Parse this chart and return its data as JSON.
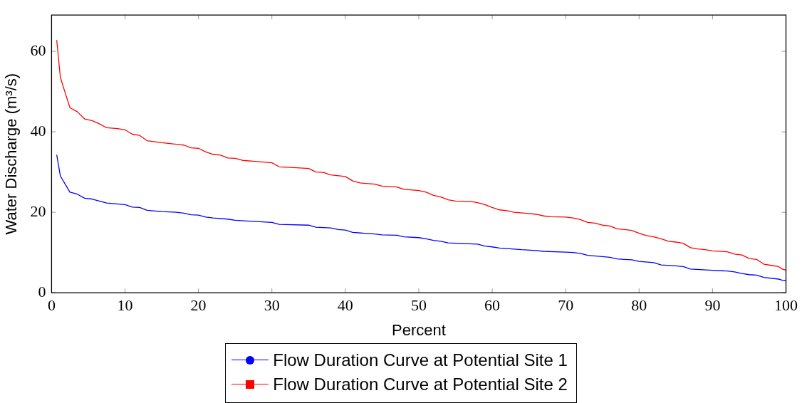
{
  "chart_data": {
    "type": "line",
    "xlabel": "Percent",
    "ylabel": "Water Discharge (m³/s)",
    "xlim": [
      0,
      100
    ],
    "xticks": [
      0,
      10,
      20,
      30,
      40,
      50,
      60,
      70,
      80,
      90,
      100
    ],
    "ylim": [
      0,
      69
    ],
    "yticks": [
      0,
      20,
      40,
      60
    ],
    "grid": false,
    "legend": "bottom",
    "line_style": "solid",
    "series": [
      {
        "name": "Flow Duration Curve at Potential Site 1",
        "color": "#0000ff",
        "x": [
          0.7,
          1.2,
          2.5,
          3.5,
          4.5,
          5.5,
          6.5,
          7.5,
          10,
          11,
          12,
          13,
          15,
          17,
          18,
          19,
          20,
          21,
          22,
          24,
          25,
          27,
          30,
          31,
          35,
          36,
          38,
          39,
          40,
          41,
          44,
          45,
          47,
          48,
          50,
          51,
          52,
          53,
          54,
          58,
          59,
          60,
          61,
          62,
          64,
          66,
          67,
          70,
          71,
          72,
          73,
          75,
          76,
          77,
          78,
          79,
          80,
          82,
          83,
          85,
          86,
          87,
          90,
          92,
          93,
          94,
          95,
          96,
          97,
          99,
          99.5,
          100
        ],
        "values": [
          34.3,
          29,
          25,
          24.5,
          23.5,
          23.3,
          22.8,
          22.3,
          21.9,
          21.3,
          21.2,
          20.5,
          20.2,
          20,
          19.8,
          19.4,
          19.3,
          18.8,
          18.6,
          18.3,
          18,
          17.8,
          17.5,
          17,
          16.8,
          16.3,
          16.1,
          15.7,
          15.6,
          15,
          14.6,
          14.4,
          14.3,
          13.9,
          13.7,
          13.4,
          13,
          12.8,
          12.4,
          12.1,
          11.6,
          11.4,
          11.1,
          11,
          10.7,
          10.5,
          10.3,
          10.1,
          10,
          9.8,
          9.3,
          9,
          8.8,
          8.4,
          8.3,
          8.2,
          7.8,
          7.5,
          6.9,
          6.7,
          6.5,
          5.9,
          5.6,
          5.4,
          5.2,
          4.8,
          4.5,
          4.4,
          3.8,
          3.4,
          3.1,
          3
        ]
      },
      {
        "name": "Flow Duration Curve at Potential Site 2",
        "color": "#ff0000",
        "x": [
          0.7,
          1.2,
          1.8,
          2.5,
          3.5,
          4.5,
          5.5,
          6.5,
          7.5,
          9,
          10,
          11,
          12,
          13,
          15,
          17,
          18,
          19,
          20,
          21,
          22,
          23,
          24,
          25,
          26,
          28,
          30,
          31,
          33,
          35,
          36,
          37,
          38,
          40,
          41,
          42,
          44,
          45,
          47,
          48,
          50,
          51,
          52,
          53,
          54,
          55,
          57,
          58,
          59,
          60,
          61,
          62,
          63,
          65,
          66,
          67,
          68,
          70,
          71,
          72,
          73,
          74,
          75,
          76,
          77,
          78,
          79,
          80,
          81,
          82,
          83,
          84,
          85,
          86,
          87,
          88,
          89,
          90,
          92,
          93,
          94,
          95,
          96,
          97,
          98,
          99,
          99.5,
          100
        ],
        "values": [
          62.8,
          53.5,
          50,
          46,
          45,
          43.2,
          42.8,
          42,
          41,
          40.8,
          40.5,
          39.4,
          39.1,
          37.8,
          37.3,
          36.9,
          36.7,
          36,
          35.9,
          35,
          34.4,
          34.2,
          33.5,
          33.4,
          32.9,
          32.6,
          32.3,
          31.3,
          31.1,
          30.9,
          30,
          29.9,
          29.3,
          28.9,
          27.8,
          27.3,
          27,
          26.5,
          26.3,
          25.7,
          25.4,
          25,
          24.2,
          23.8,
          23.1,
          22.8,
          22.7,
          22.4,
          21.9,
          21.2,
          20.6,
          20.4,
          20,
          19.7,
          19.5,
          19.1,
          18.9,
          18.8,
          18.6,
          18.2,
          17.5,
          17.3,
          16.8,
          16.6,
          15.9,
          15.7,
          15.5,
          14.8,
          14.2,
          13.9,
          13.4,
          12.8,
          12.6,
          12.3,
          11.2,
          10.9,
          10.7,
          10.4,
          10.2,
          9.6,
          9.4,
          8.5,
          8.3,
          7.1,
          6.8,
          6.5,
          5.9,
          5.6
        ]
      }
    ]
  }
}
